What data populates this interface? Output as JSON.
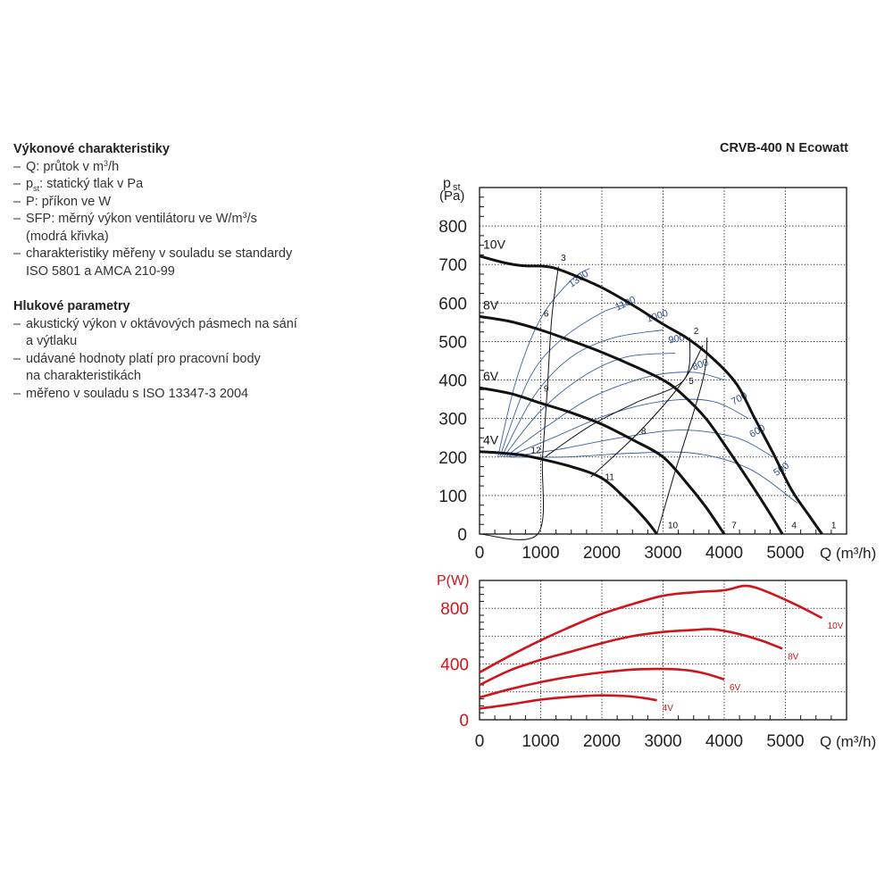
{
  "header": {
    "model": "CRVB-400 N Ecowatt"
  },
  "left_panel": {
    "section1": {
      "title": "Výkonové charakteristiky",
      "items": [
        {
          "pre": "Q: průtok v m",
          "sup": "3",
          "post": "/h"
        },
        {
          "pre": "p",
          "sub": "st",
          "post": ": statický tlak v Pa"
        },
        {
          "pre": "P: příkon ve W"
        },
        {
          "pre": "SFP: měrný výkon ventilátoru ve W/m",
          "sup": "3",
          "post": "/s"
        },
        {
          "pre": "(modrá křivka)",
          "cont": true
        },
        {
          "pre": "charakteristiky měřeny v souladu se standardy"
        },
        {
          "pre": "ISO 5801 a AMCA 210-99",
          "cont": true
        }
      ]
    },
    "section2": {
      "title": "Hlukové parametry",
      "items": [
        {
          "pre": "akustický výkon v oktávových pásmech na sání"
        },
        {
          "pre": "a výtlaku",
          "cont": true
        },
        {
          "pre": "udávané hodnoty platí pro pracovní body"
        },
        {
          "pre": "na charakteristikách",
          "cont": true
        },
        {
          "pre": "měřeno v souladu s ISO 13347-3 2004"
        }
      ]
    }
  },
  "chart_data": [
    {
      "type": "line",
      "id": "pressure",
      "ylabel": "pst",
      "ylabel_sub": "st",
      "yunit": "(Pa)",
      "xlabel": "Q (m³/h)",
      "xlim": [
        0,
        6000
      ],
      "ylim": [
        0,
        900
      ],
      "xticks": [
        0,
        1000,
        2000,
        3000,
        4000,
        5000
      ],
      "yticks": [
        0,
        100,
        200,
        300,
        400,
        500,
        600,
        700,
        800
      ],
      "grid": true,
      "colors": {
        "fan": "#111111",
        "sfp": "#3d5fa0",
        "sfp_label": "#2f4f8f"
      },
      "series": [
        {
          "name": "10V",
          "points": [
            [
              0,
              722
            ],
            [
              400,
              705
            ],
            [
              700,
              697
            ],
            [
              1000,
              696
            ],
            [
              1200,
              692
            ],
            [
              1500,
              675
            ],
            [
              2000,
              640
            ],
            [
              2500,
              595
            ],
            [
              3000,
              545
            ],
            [
              3400,
              508
            ],
            [
              3800,
              458
            ],
            [
              4200,
              390
            ],
            [
              4500,
              300
            ],
            [
              4800,
              210
            ],
            [
              5100,
              115
            ],
            [
              5400,
              45
            ],
            [
              5600,
              0
            ]
          ]
        },
        {
          "name": "8V",
          "points": [
            [
              0,
              565
            ],
            [
              500,
              552
            ],
            [
              1000,
              530
            ],
            [
              1500,
              502
            ],
            [
              2000,
              472
            ],
            [
              2500,
              438
            ],
            [
              3000,
              400
            ],
            [
              3300,
              365
            ],
            [
              3700,
              300
            ],
            [
              4100,
              210
            ],
            [
              4500,
              115
            ],
            [
              4800,
              40
            ],
            [
              4950,
              0
            ]
          ]
        },
        {
          "name": "6V",
          "points": [
            [
              0,
              380
            ],
            [
              500,
              365
            ],
            [
              1000,
              340
            ],
            [
              1500,
              315
            ],
            [
              2000,
              285
            ],
            [
              2500,
              245
            ],
            [
              3000,
              200
            ],
            [
              3400,
              130
            ],
            [
              3700,
              70
            ],
            [
              4000,
              0
            ]
          ]
        },
        {
          "name": "4V",
          "points": [
            [
              0,
              214
            ],
            [
              400,
              210
            ],
            [
              700,
              205
            ],
            [
              1000,
              195
            ],
            [
              1500,
              175
            ],
            [
              2000,
              145
            ],
            [
              2400,
              90
            ],
            [
              2700,
              40
            ],
            [
              2900,
              0
            ]
          ]
        }
      ],
      "system_curves": [
        {
          "points": [
            [
              0,
              0
            ],
            [
              950,
              0
            ],
            [
              1030,
              200
            ],
            [
              1110,
              380
            ],
            [
              1180,
              560
            ],
            [
              1290,
              695
            ]
          ]
        },
        {
          "points": [
            [
              1070,
              200
            ],
            [
              1800,
              280
            ],
            [
              2540,
              340
            ],
            [
              3340,
              400
            ],
            [
              3440,
              510
            ]
          ]
        },
        {
          "points": [
            [
              1820,
              148
            ],
            [
              2640,
              270
            ],
            [
              3340,
              400
            ],
            [
              3650,
              490
            ]
          ]
        },
        {
          "points": [
            [
              2900,
              0
            ],
            [
              3170,
              148
            ],
            [
              3650,
              400
            ],
            [
              3720,
              510
            ]
          ]
        }
      ],
      "sfp_curves": [
        {
          "label": "1300",
          "points": [
            [
              300,
              200
            ],
            [
              600,
              400
            ],
            [
              1000,
              560
            ],
            [
              1500,
              660
            ],
            [
              1800,
              690
            ]
          ]
        },
        {
          "label": "1100",
          "points": [
            [
              330,
              200
            ],
            [
              800,
              400
            ],
            [
              1300,
              500
            ],
            [
              2000,
              575
            ],
            [
              2500,
              600
            ]
          ]
        },
        {
          "label": "1000",
          "points": [
            [
              360,
              200
            ],
            [
              900,
              360
            ],
            [
              1500,
              460
            ],
            [
              2200,
              510
            ],
            [
              3000,
              530
            ]
          ]
        },
        {
          "label": "900",
          "points": [
            [
              390,
              200
            ],
            [
              1000,
              320
            ],
            [
              1700,
              410
            ],
            [
              2400,
              460
            ],
            [
              3200,
              470
            ]
          ]
        },
        {
          "label": "800",
          "points": [
            [
              420,
              200
            ],
            [
              1100,
              280
            ],
            [
              1900,
              360
            ],
            [
              2800,
              410
            ],
            [
              3500,
              420
            ],
            [
              4000,
              400
            ]
          ]
        },
        {
          "label": "700",
          "points": [
            [
              450,
              200
            ],
            [
              1200,
              250
            ],
            [
              2100,
              310
            ],
            [
              3000,
              345
            ],
            [
              3800,
              345
            ],
            [
              4400,
              300
            ]
          ]
        },
        {
          "label": "600",
          "points": [
            [
              480,
              200
            ],
            [
              1300,
              220
            ],
            [
              2300,
              250
            ],
            [
              3300,
              270
            ],
            [
              4200,
              250
            ],
            [
              4800,
              200
            ]
          ]
        },
        {
          "label": "500",
          "points": [
            [
              510,
              200
            ],
            [
              1400,
              200
            ],
            [
              2500,
              210
            ],
            [
              3500,
              210
            ],
            [
              4400,
              170
            ],
            [
              5200,
              80
            ]
          ]
        }
      ],
      "point_labels": [
        {
          "label": "1",
          "x": 5750,
          "y": 15
        },
        {
          "label": "2",
          "x": 3500,
          "y": 520
        },
        {
          "label": "3",
          "x": 1330,
          "y": 710
        },
        {
          "label": "4",
          "x": 5100,
          "y": 15
        },
        {
          "label": "5",
          "x": 3420,
          "y": 390
        },
        {
          "label": "6",
          "x": 1050,
          "y": 565
        },
        {
          "label": "7",
          "x": 4120,
          "y": 15
        },
        {
          "label": "8",
          "x": 2640,
          "y": 260
        },
        {
          "label": "9",
          "x": 1050,
          "y": 370
        },
        {
          "label": "10",
          "x": 3080,
          "y": 15
        },
        {
          "label": "11",
          "x": 2050,
          "y": 140
        },
        {
          "label": "12",
          "x": 840,
          "y": 210
        }
      ]
    },
    {
      "type": "line",
      "id": "power",
      "ylabel": "P(W)",
      "xlabel": "Q (m³/h)",
      "xlim": [
        0,
        6000
      ],
      "ylim": [
        0,
        1000
      ],
      "xticks": [
        0,
        1000,
        2000,
        3000,
        4000,
        5000
      ],
      "yticks": [
        0,
        400,
        800
      ],
      "grid": true,
      "colors": {
        "line": "#d0141c",
        "axis_label": "#d0141c"
      },
      "series": [
        {
          "name": "10V",
          "points": [
            [
              0,
              340
            ],
            [
              500,
              460
            ],
            [
              1000,
              570
            ],
            [
              1500,
              670
            ],
            [
              2000,
              760
            ],
            [
              2500,
              830
            ],
            [
              3000,
              890
            ],
            [
              3500,
              915
            ],
            [
              4000,
              930
            ],
            [
              4300,
              960
            ],
            [
              4500,
              950
            ],
            [
              4800,
              900
            ],
            [
              5200,
              820
            ],
            [
              5600,
              730
            ]
          ]
        },
        {
          "name": "8V",
          "points": [
            [
              0,
              250
            ],
            [
              500,
              355
            ],
            [
              1000,
              430
            ],
            [
              1500,
              490
            ],
            [
              2000,
              550
            ],
            [
              2500,
              600
            ],
            [
              3000,
              630
            ],
            [
              3500,
              645
            ],
            [
              3800,
              650
            ],
            [
              4200,
              620
            ],
            [
              4600,
              570
            ],
            [
              4950,
              510
            ]
          ]
        },
        {
          "name": "6V",
          "points": [
            [
              0,
              160
            ],
            [
              500,
              220
            ],
            [
              1000,
              270
            ],
            [
              1500,
              310
            ],
            [
              2000,
              340
            ],
            [
              2500,
              360
            ],
            [
              3000,
              365
            ],
            [
              3400,
              355
            ],
            [
              3700,
              330
            ],
            [
              4000,
              290
            ]
          ]
        },
        {
          "name": "4V",
          "points": [
            [
              0,
              80
            ],
            [
              500,
              110
            ],
            [
              1000,
              145
            ],
            [
              1500,
              165
            ],
            [
              2000,
              175
            ],
            [
              2400,
              170
            ],
            [
              2700,
              155
            ],
            [
              2900,
              140
            ]
          ]
        }
      ]
    }
  ]
}
